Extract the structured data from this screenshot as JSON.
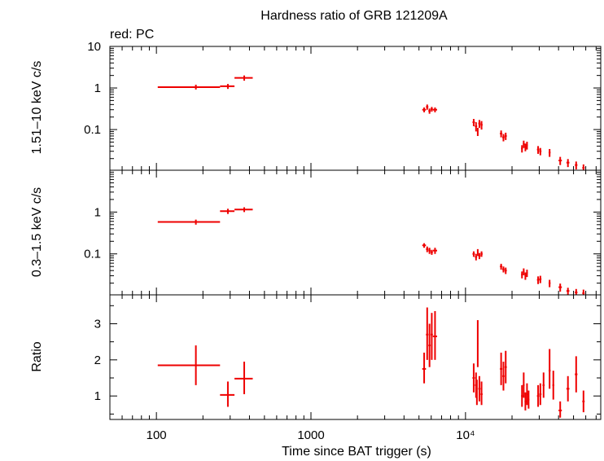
{
  "colors": {
    "data": "#ee0000",
    "axes": "#000000",
    "background": "#ffffff"
  },
  "chart_data": {
    "type": "scatter",
    "title": "Hardness ratio of GRB 121209A",
    "subtitle": "red: PC",
    "xlabel": "Time since BAT trigger (s)",
    "x_scale": "log",
    "xlim": [
      50,
      75000
    ],
    "x_ticks": [
      {
        "value": 100,
        "label": "100"
      },
      {
        "value": 1000,
        "label": "1000"
      },
      {
        "value": 10000,
        "label": "10⁴"
      }
    ],
    "panels": [
      {
        "name": "hard",
        "ylabel": "1.51–10 keV c/s",
        "y_scale": "log",
        "ylim": [
          0.0105,
          10
        ],
        "y_ticks": [
          {
            "value": 10,
            "label": "10"
          },
          {
            "value": 1,
            "label": "1"
          },
          {
            "value": 0.1,
            "label": "0.1"
          }
        ],
        "points": [
          [
            180,
            102,
            258,
            1.05,
            0.92,
            1.2
          ],
          [
            290,
            258,
            320,
            1.1,
            0.95,
            1.25
          ],
          [
            370,
            320,
            420,
            1.75,
            1.5,
            2.0
          ],
          [
            5400,
            5250,
            5550,
            0.3,
            0.26,
            0.34
          ],
          [
            5650,
            5550,
            5750,
            0.35,
            0.3,
            0.4
          ],
          [
            5850,
            5750,
            5950,
            0.28,
            0.24,
            0.32
          ],
          [
            6050,
            5950,
            6150,
            0.31,
            0.27,
            0.35
          ],
          [
            6350,
            6150,
            6550,
            0.3,
            0.26,
            0.34
          ],
          [
            11300,
            11100,
            11500,
            0.15,
            0.12,
            0.18
          ],
          [
            11700,
            11500,
            11900,
            0.12,
            0.09,
            0.15
          ],
          [
            12000,
            11900,
            12100,
            0.09,
            0.07,
            0.11
          ],
          [
            12300,
            12100,
            12500,
            0.14,
            0.11,
            0.17
          ],
          [
            12700,
            12500,
            12900,
            0.13,
            0.1,
            0.16
          ],
          [
            17000,
            16700,
            17300,
            0.08,
            0.065,
            0.095
          ],
          [
            17600,
            17300,
            17900,
            0.065,
            0.052,
            0.078
          ],
          [
            18200,
            17900,
            18500,
            0.07,
            0.056,
            0.084
          ],
          [
            23200,
            22900,
            23500,
            0.035,
            0.028,
            0.042
          ],
          [
            23800,
            23500,
            24100,
            0.045,
            0.036,
            0.054
          ],
          [
            24400,
            24100,
            24700,
            0.038,
            0.03,
            0.046
          ],
          [
            25000,
            24700,
            25300,
            0.042,
            0.033,
            0.051
          ],
          [
            29500,
            29000,
            30000,
            0.033,
            0.026,
            0.04
          ],
          [
            30500,
            30000,
            31000,
            0.03,
            0.024,
            0.036
          ],
          [
            35000,
            34500,
            35500,
            0.028,
            0.022,
            0.034
          ],
          [
            41000,
            40000,
            42000,
            0.018,
            0.014,
            0.022
          ],
          [
            46000,
            45000,
            47000,
            0.016,
            0.0125,
            0.0195
          ],
          [
            52000,
            51000,
            53000,
            0.014,
            0.011,
            0.017
          ],
          [
            58000,
            57000,
            59000,
            0.012,
            0.0095,
            0.0145
          ]
        ]
      },
      {
        "name": "soft",
        "ylabel": "0.3–1.5 keV c/s",
        "y_scale": "log",
        "ylim": [
          0.0105,
          10
        ],
        "y_ticks": [
          {
            "value": 1,
            "label": "1"
          },
          {
            "value": 0.1,
            "label": "0.1"
          }
        ],
        "points": [
          [
            180,
            102,
            258,
            0.58,
            0.5,
            0.66
          ],
          [
            290,
            258,
            320,
            1.05,
            0.9,
            1.2
          ],
          [
            370,
            320,
            420,
            1.15,
            1.0,
            1.3
          ],
          [
            5400,
            5250,
            5550,
            0.16,
            0.14,
            0.18
          ],
          [
            5650,
            5550,
            5750,
            0.13,
            0.11,
            0.15
          ],
          [
            5850,
            5750,
            5950,
            0.12,
            0.1,
            0.14
          ],
          [
            6050,
            5950,
            6150,
            0.11,
            0.095,
            0.125
          ],
          [
            6350,
            6150,
            6550,
            0.12,
            0.1,
            0.14
          ],
          [
            11300,
            11100,
            11500,
            0.1,
            0.085,
            0.115
          ],
          [
            11700,
            11500,
            11900,
            0.085,
            0.07,
            0.1
          ],
          [
            12000,
            11900,
            12100,
            0.11,
            0.09,
            0.13
          ],
          [
            12300,
            12100,
            12500,
            0.09,
            0.075,
            0.105
          ],
          [
            12700,
            12500,
            12900,
            0.1,
            0.085,
            0.115
          ],
          [
            17000,
            16700,
            17300,
            0.05,
            0.042,
            0.058
          ],
          [
            17600,
            17300,
            17900,
            0.043,
            0.036,
            0.05
          ],
          [
            18200,
            17900,
            18500,
            0.04,
            0.033,
            0.047
          ],
          [
            23200,
            22900,
            23500,
            0.032,
            0.026,
            0.038
          ],
          [
            23800,
            23500,
            24100,
            0.038,
            0.031,
            0.045
          ],
          [
            24400,
            24100,
            24700,
            0.03,
            0.024,
            0.036
          ],
          [
            25000,
            24700,
            25300,
            0.035,
            0.028,
            0.042
          ],
          [
            29500,
            29000,
            30000,
            0.024,
            0.019,
            0.029
          ],
          [
            30500,
            30000,
            31000,
            0.025,
            0.02,
            0.03
          ],
          [
            35000,
            34500,
            35500,
            0.02,
            0.016,
            0.024
          ],
          [
            41000,
            40000,
            42000,
            0.016,
            0.0125,
            0.0195
          ],
          [
            46000,
            45000,
            47000,
            0.013,
            0.0105,
            0.0155
          ],
          [
            52000,
            51000,
            53000,
            0.012,
            0.0105,
            0.0145
          ],
          [
            58000,
            57000,
            59000,
            0.0115,
            0.0105,
            0.014
          ]
        ]
      },
      {
        "name": "ratio",
        "ylabel": "Ratio",
        "y_scale": "linear",
        "ylim": [
          0.35,
          3.8
        ],
        "y_ticks": [
          {
            "value": 3,
            "label": "3"
          },
          {
            "value": 2,
            "label": "2"
          },
          {
            "value": 1,
            "label": "1"
          }
        ],
        "points": [
          [
            180,
            102,
            258,
            1.85,
            1.3,
            2.4
          ],
          [
            290,
            258,
            320,
            1.03,
            0.7,
            1.4
          ],
          [
            370,
            320,
            420,
            1.48,
            1.05,
            1.95
          ],
          [
            5400,
            5250,
            5550,
            1.75,
            1.35,
            2.2
          ],
          [
            5650,
            5550,
            5750,
            2.7,
            2.0,
            3.45
          ],
          [
            5850,
            5750,
            5950,
            2.4,
            1.8,
            3.0
          ],
          [
            6050,
            5950,
            6150,
            2.7,
            2.0,
            3.3
          ],
          [
            6350,
            6150,
            6550,
            2.65,
            2.0,
            3.35
          ],
          [
            11300,
            11100,
            11500,
            1.5,
            1.1,
            1.9
          ],
          [
            11700,
            11500,
            11900,
            1.3,
            0.95,
            1.65
          ],
          [
            11850,
            11750,
            11950,
            1.1,
            0.75,
            1.45
          ],
          [
            12000,
            11900,
            12100,
            2.45,
            1.8,
            3.1
          ],
          [
            12300,
            12100,
            12500,
            1.2,
            0.85,
            1.55
          ],
          [
            12700,
            12500,
            12900,
            1.05,
            0.75,
            1.4
          ],
          [
            17000,
            16700,
            17300,
            1.75,
            1.3,
            2.2
          ],
          [
            17600,
            17300,
            17900,
            1.55,
            1.15,
            1.95
          ],
          [
            18200,
            17900,
            18500,
            1.8,
            1.35,
            2.25
          ],
          [
            23200,
            22900,
            23500,
            1.0,
            0.7,
            1.3
          ],
          [
            23800,
            23500,
            24100,
            1.3,
            0.95,
            1.65
          ],
          [
            24400,
            24100,
            24700,
            0.85,
            0.6,
            1.1
          ],
          [
            25000,
            24700,
            25300,
            1.05,
            0.75,
            1.35
          ],
          [
            25600,
            25300,
            25900,
            0.9,
            0.65,
            1.15
          ],
          [
            29500,
            29000,
            30000,
            1.0,
            0.7,
            1.3
          ],
          [
            30500,
            30000,
            31000,
            1.05,
            0.75,
            1.35
          ],
          [
            32000,
            31500,
            32500,
            1.3,
            0.95,
            1.65
          ],
          [
            35000,
            34500,
            35500,
            1.7,
            1.2,
            2.3
          ],
          [
            37000,
            36500,
            37500,
            1.3,
            0.9,
            1.7
          ],
          [
            41000,
            40000,
            42000,
            0.6,
            0.4,
            0.85
          ],
          [
            46000,
            45000,
            47000,
            1.2,
            0.85,
            1.55
          ],
          [
            52000,
            51000,
            53000,
            1.6,
            1.1,
            2.1
          ],
          [
            58000,
            57000,
            59000,
            0.85,
            0.55,
            1.15
          ]
        ]
      }
    ],
    "point_format": [
      "x",
      "x_low",
      "x_high",
      "y",
      "y_low",
      "y_high"
    ]
  }
}
